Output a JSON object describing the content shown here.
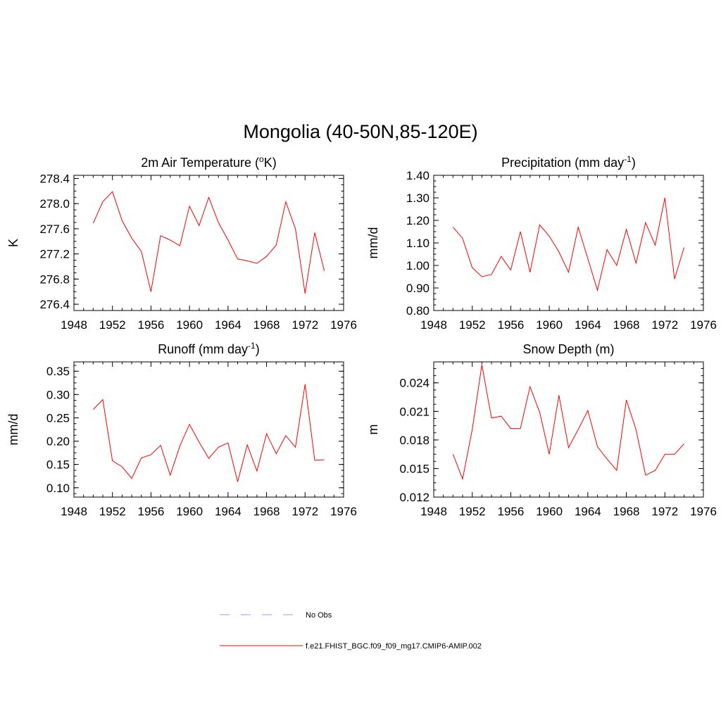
{
  "figure": {
    "title": "Mongolia (40-50N,85-120E)"
  },
  "legend": {
    "entries": [
      {
        "label": "No Obs",
        "color": "#9999ff",
        "dash": true
      },
      {
        "label": "f.e21.FHIST_BGC.f09_f09_mg17.CMIP6-AMIP.002",
        "color": "#ff0000",
        "dash": false
      }
    ]
  },
  "chart_data": [
    {
      "type": "line",
      "title_main": "2m Air Temperature (",
      "title_sup": "o",
      "title_end": "K)",
      "ylabel": "K",
      "xlim": [
        1948,
        1976
      ],
      "xticks": [
        "1948",
        "1952",
        "1956",
        "1960",
        "1964",
        "1968",
        "1972",
        "1976"
      ],
      "ylim": [
        276.3,
        278.45
      ],
      "yticks": [
        "276.4",
        "276.8",
        "277.2",
        "277.6",
        "278.0",
        "278.4"
      ],
      "series": [
        {
          "color": "#ff0000",
          "x": [
            1950,
            1951,
            1952,
            1953,
            1954,
            1955,
            1956,
            1957,
            1958,
            1959,
            1960,
            1961,
            1962,
            1963,
            1964,
            1965,
            1966,
            1967,
            1968,
            1969,
            1970,
            1971,
            1972,
            1973,
            1974
          ],
          "y": [
            277.69,
            278.03,
            278.19,
            277.73,
            277.45,
            277.24,
            276.6,
            277.49,
            277.42,
            277.33,
            277.96,
            277.65,
            278.1,
            277.7,
            277.42,
            277.12,
            277.09,
            277.05,
            277.16,
            277.34,
            278.03,
            277.6,
            276.57,
            277.54,
            276.93
          ]
        }
      ]
    },
    {
      "type": "line",
      "title_main": "Precipitation (mm day",
      "title_sup": "-1",
      "title_end": ")",
      "ylabel": "mm/d",
      "xlim": [
        1948,
        1976
      ],
      "xticks": [
        "1948",
        "1952",
        "1956",
        "1960",
        "1964",
        "1968",
        "1972",
        "1976"
      ],
      "ylim": [
        0.8,
        1.4
      ],
      "yticks": [
        "0.80",
        "0.90",
        "1.00",
        "1.10",
        "1.20",
        "1.30",
        "1.40"
      ],
      "series": [
        {
          "color": "#ff0000",
          "x": [
            1950,
            1951,
            1952,
            1953,
            1954,
            1955,
            1956,
            1957,
            1958,
            1959,
            1960,
            1961,
            1962,
            1963,
            1964,
            1965,
            1966,
            1967,
            1968,
            1969,
            1970,
            1971,
            1972,
            1973,
            1974
          ],
          "y": [
            1.17,
            1.12,
            0.99,
            0.95,
            0.96,
            1.04,
            0.98,
            1.15,
            0.97,
            1.18,
            1.13,
            1.06,
            0.97,
            1.17,
            1.03,
            0.89,
            1.07,
            1.0,
            1.16,
            1.01,
            1.19,
            1.09,
            1.3,
            0.94,
            1.08
          ]
        }
      ]
    },
    {
      "type": "line",
      "title_main": "Runoff (mm day",
      "title_sup": "-1",
      "title_end": ")",
      "ylabel": "mm/d",
      "xlim": [
        1948,
        1976
      ],
      "xticks": [
        "1948",
        "1952",
        "1956",
        "1960",
        "1964",
        "1968",
        "1972",
        "1976"
      ],
      "ylim": [
        0.08,
        0.37
      ],
      "yticks": [
        "0.10",
        "0.15",
        "0.20",
        "0.25",
        "0.30",
        "0.35"
      ],
      "series": [
        {
          "color": "#ff0000",
          "x": [
            1950,
            1951,
            1952,
            1953,
            1954,
            1955,
            1956,
            1957,
            1958,
            1959,
            1960,
            1961,
            1962,
            1963,
            1964,
            1965,
            1966,
            1967,
            1968,
            1969,
            1970,
            1971,
            1972,
            1973,
            1974
          ],
          "y": [
            0.268,
            0.289,
            0.158,
            0.145,
            0.12,
            0.164,
            0.171,
            0.191,
            0.127,
            0.19,
            0.236,
            0.198,
            0.163,
            0.187,
            0.196,
            0.113,
            0.192,
            0.136,
            0.216,
            0.173,
            0.212,
            0.187,
            0.322,
            0.159,
            0.16
          ]
        }
      ]
    },
    {
      "type": "line",
      "title_main": "Snow Depth (m)",
      "title_sup": "",
      "title_end": "",
      "ylabel": "m",
      "xlim": [
        1948,
        1976
      ],
      "xticks": [
        "1948",
        "1952",
        "1956",
        "1960",
        "1964",
        "1968",
        "1972",
        "1976"
      ],
      "ylim": [
        0.012,
        0.0262
      ],
      "yticks": [
        "0.012",
        "0.015",
        "0.018",
        "0.021",
        "0.024"
      ],
      "series": [
        {
          "color": "#ff0000",
          "x": [
            1950,
            1951,
            1952,
            1953,
            1954,
            1955,
            1956,
            1957,
            1958,
            1959,
            1960,
            1961,
            1962,
            1963,
            1964,
            1965,
            1966,
            1967,
            1968,
            1969,
            1970,
            1971,
            1972,
            1973,
            1974
          ],
          "y": [
            0.0165,
            0.0139,
            0.0191,
            0.0259,
            0.0203,
            0.0205,
            0.0192,
            0.0192,
            0.0236,
            0.0209,
            0.0165,
            0.0227,
            0.0172,
            0.0191,
            0.0211,
            0.0173,
            0.016,
            0.0148,
            0.0222,
            0.0191,
            0.0143,
            0.0148,
            0.0165,
            0.0165,
            0.0176
          ]
        }
      ]
    }
  ]
}
